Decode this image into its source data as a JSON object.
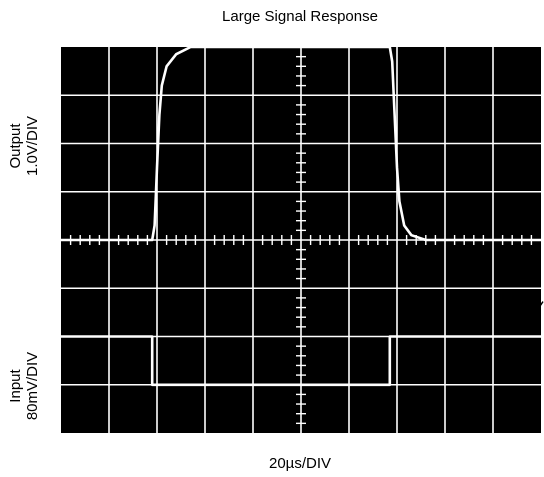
{
  "chart_data": {
    "type": "line",
    "title": "Large Signal Response",
    "xlabel": "20µs/DIV",
    "output_label": [
      "Output",
      "1.0V/DIV"
    ],
    "input_label": [
      "Input",
      "80mV/DIV"
    ],
    "divisions": {
      "x": 10,
      "y": 8
    },
    "grid": true,
    "background": "#000000",
    "trace_color": "#ffffff",
    "grid_color": "#ffffff",
    "series": [
      {
        "x": [
          0,
          1.9,
          1.95,
          2.0,
          2.05,
          2.1,
          2.2,
          2.4,
          2.7,
          6.85,
          6.9,
          6.95,
          7.0,
          7.05,
          7.15,
          7.3,
          7.6,
          10
        ],
        "y": [
          4.0,
          4.0,
          4.3,
          5.5,
          6.6,
          7.2,
          7.6,
          7.85,
          8.0,
          8.0,
          7.7,
          6.6,
          5.5,
          4.8,
          4.3,
          4.1,
          4.0,
          4.0
        ]
      },
      {
        "x": [
          0,
          1.9,
          1.9,
          6.85,
          6.85,
          10
        ],
        "y": [
          2.0,
          2.0,
          1.0,
          1.0,
          2.0,
          2.0
        ]
      }
    ]
  }
}
